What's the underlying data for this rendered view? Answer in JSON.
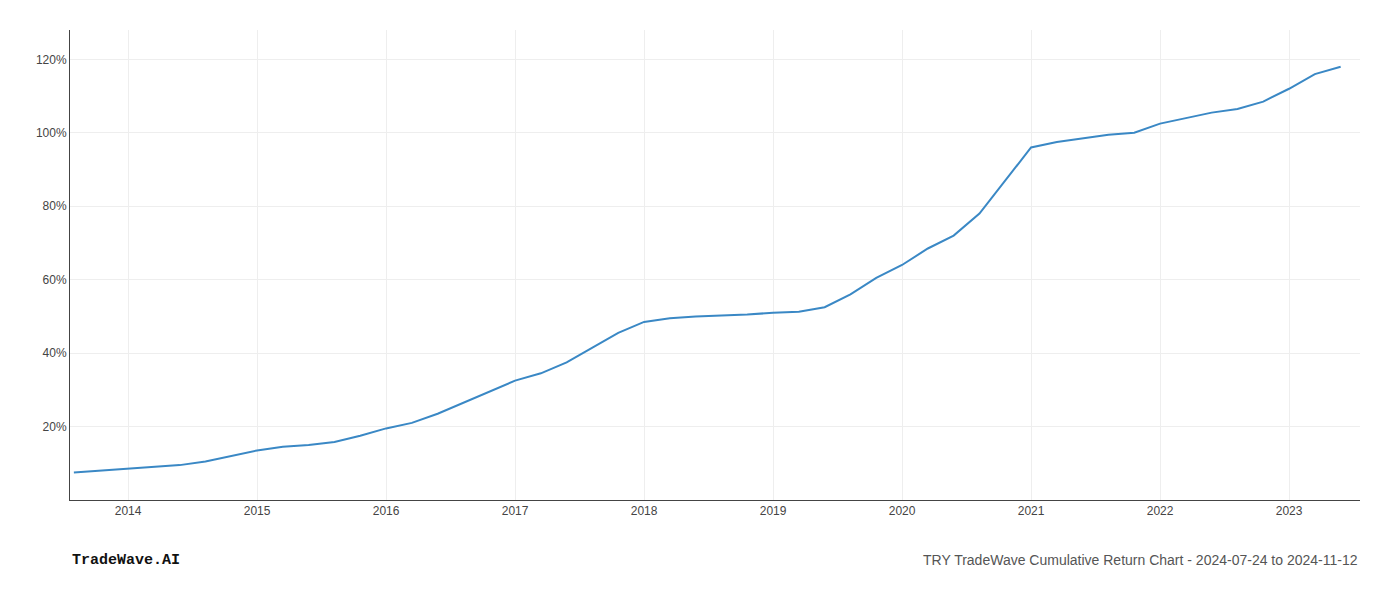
{
  "chart_data": {
    "type": "line",
    "x": [
      2013.58,
      2014.0,
      2014.2,
      2014.4,
      2014.6,
      2014.8,
      2015.0,
      2015.2,
      2015.4,
      2015.6,
      2015.8,
      2016.0,
      2016.2,
      2016.4,
      2016.6,
      2016.8,
      2017.0,
      2017.2,
      2017.4,
      2017.6,
      2017.8,
      2018.0,
      2018.1,
      2018.2,
      2018.4,
      2018.6,
      2018.8,
      2019.0,
      2019.2,
      2019.4,
      2019.6,
      2019.8,
      2020.0,
      2020.2,
      2020.4,
      2020.6,
      2020.8,
      2021.0,
      2021.2,
      2021.4,
      2021.6,
      2021.8,
      2022.0,
      2022.2,
      2022.4,
      2022.6,
      2022.8,
      2023.0,
      2023.2,
      2023.4
    ],
    "values": [
      7.5,
      8.5,
      9.0,
      9.5,
      10.5,
      12.0,
      13.5,
      14.5,
      15.0,
      15.8,
      17.5,
      19.5,
      21.0,
      23.5,
      26.5,
      29.5,
      32.5,
      34.5,
      37.5,
      41.5,
      45.5,
      48.5,
      49.0,
      49.5,
      50.0,
      50.2,
      50.5,
      51.0,
      51.3,
      52.5,
      56.0,
      60.5,
      64.0,
      68.5,
      72.0,
      78.0,
      87.0,
      96.0,
      97.5,
      98.5,
      99.5,
      100.0,
      102.5,
      104.0,
      105.5,
      106.5,
      108.5,
      112.0,
      116.0,
      118.0
    ],
    "color": "#3a88c5",
    "xlim": [
      2013.55,
      2023.55
    ],
    "xticks": [
      2014,
      2015,
      2016,
      2017,
      2018,
      2019,
      2020,
      2021,
      2022,
      2023
    ],
    "ylim": [
      0,
      128
    ],
    "yticks": [
      {
        "value": 20,
        "label": "20%"
      },
      {
        "value": 40,
        "label": "40%"
      },
      {
        "value": 60,
        "label": "60%"
      },
      {
        "value": 80,
        "label": "80%"
      },
      {
        "value": 100,
        "label": "100%"
      },
      {
        "value": 120,
        "label": "120%"
      }
    ],
    "grid": true,
    "annotations": [
      "TradeWave.AI",
      "TRY TradeWave Cumulative Return Chart - 2024-07-24 to 2024-11-12"
    ]
  }
}
